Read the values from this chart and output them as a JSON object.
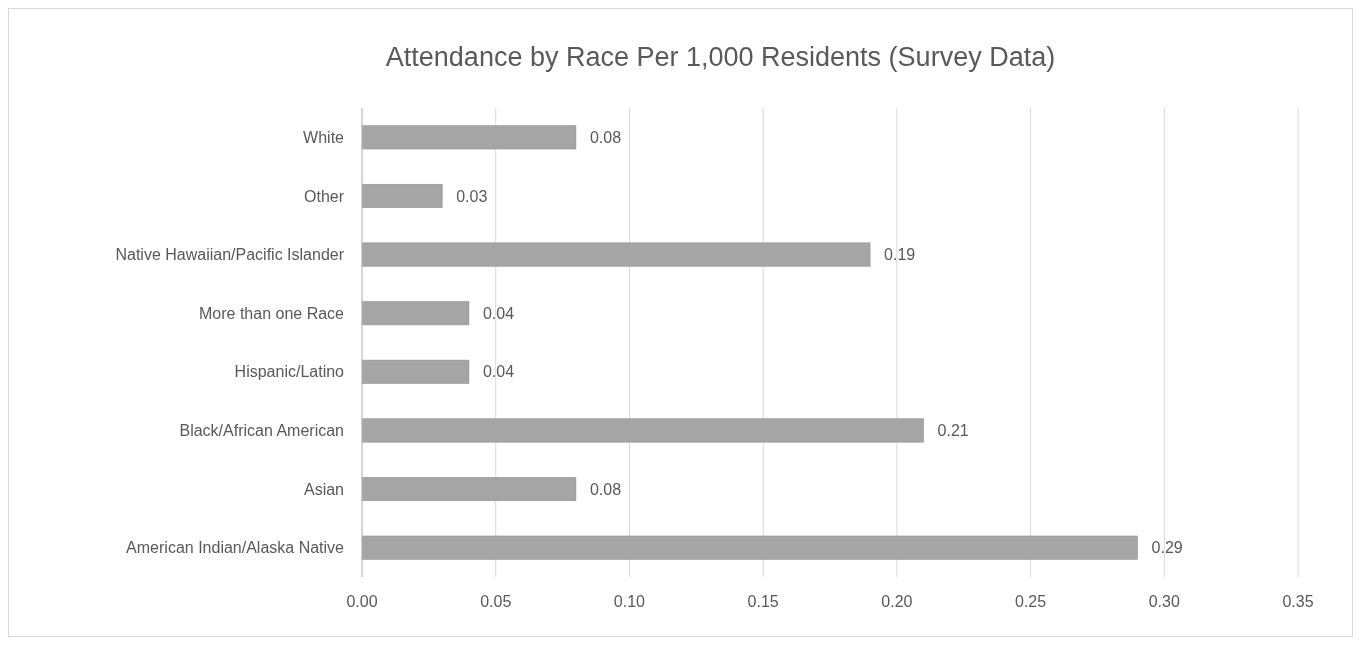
{
  "chart_data": {
    "type": "bar",
    "orientation": "horizontal",
    "title": "Attendance by Race Per 1,000 Residents (Survey Data)",
    "categories": [
      "White",
      "Other",
      "Native Hawaiian/Pacific Islander",
      "More than one Race",
      "Hispanic/Latino",
      "Black/African American",
      "Asian",
      "American Indian/Alaska Native"
    ],
    "values": [
      0.08,
      0.03,
      0.19,
      0.04,
      0.04,
      0.21,
      0.08,
      0.29
    ],
    "color": "#a5a5a5",
    "data_labels": true,
    "grid": "x",
    "xlim": [
      0,
      0.35
    ],
    "xticks": [
      {
        "value": 0,
        "label": "0.00"
      },
      {
        "value": 0.05,
        "label": "0.05"
      },
      {
        "value": 0.1,
        "label": "0.10"
      },
      {
        "value": 0.15,
        "label": "0.15"
      },
      {
        "value": 0.2,
        "label": "0.20"
      },
      {
        "value": 0.25,
        "label": "0.25"
      },
      {
        "value": 0.3,
        "label": "0.30"
      },
      {
        "value": 0.35,
        "label": "0.35"
      }
    ]
  }
}
